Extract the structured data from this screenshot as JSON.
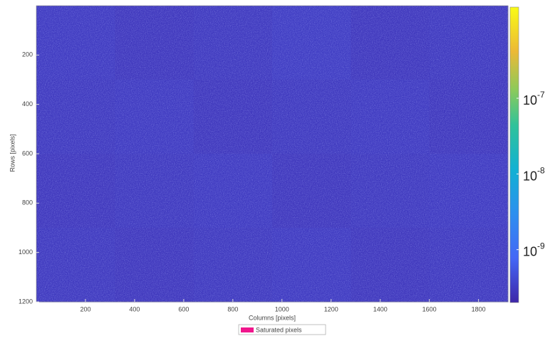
{
  "chart_data": {
    "type": "heatmap",
    "x_label": "Columns [pixels]",
    "y_label": "Rows [pixels]",
    "xlim": [
      0,
      1920
    ],
    "xticks": [
      200,
      400,
      600,
      800,
      1000,
      1200,
      1400,
      1600,
      1800
    ],
    "ylim": [
      0,
      1200
    ],
    "yticks": [
      200,
      400,
      600,
      800,
      1000,
      1200
    ],
    "y_reversed": true,
    "z": [
      [
        3.1e-10,
        2.9e-10,
        3e-10,
        3.2e-10,
        2.9e-10,
        3e-10
      ],
      [
        3e-10,
        3.1e-10,
        2.9e-10,
        3e-10,
        3.1e-10,
        2.9e-10
      ],
      [
        2.9e-10,
        3e-10,
        3.1e-10,
        2.9e-10,
        3e-10,
        3.1e-10
      ],
      [
        3e-10,
        2.9e-10,
        3e-10,
        3.1e-10,
        2.9e-10,
        3e-10
      ]
    ],
    "colorbar": {
      "log": true,
      "lim": [
        2e-10,
        1.6e-06
      ],
      "ticks": [
        {
          "value": 1e-07,
          "label": "10",
          "exponent": "-7"
        },
        {
          "value": 1e-08,
          "label": "10",
          "exponent": "-8"
        },
        {
          "value": 1e-09,
          "label": "10",
          "exponent": "-9"
        }
      ],
      "colormap": [
        [
          0,
          "#3e26a8"
        ],
        [
          0.15,
          "#4467f6"
        ],
        [
          0.3,
          "#2d8fef"
        ],
        [
          0.45,
          "#12b1d3"
        ],
        [
          0.6,
          "#30c29a"
        ],
        [
          0.72,
          "#8cca5a"
        ],
        [
          0.85,
          "#ecb936"
        ],
        [
          1,
          "#f9fb15"
        ]
      ]
    },
    "legend": {
      "label": "Saturated pixels",
      "color": "#f0168c"
    }
  }
}
